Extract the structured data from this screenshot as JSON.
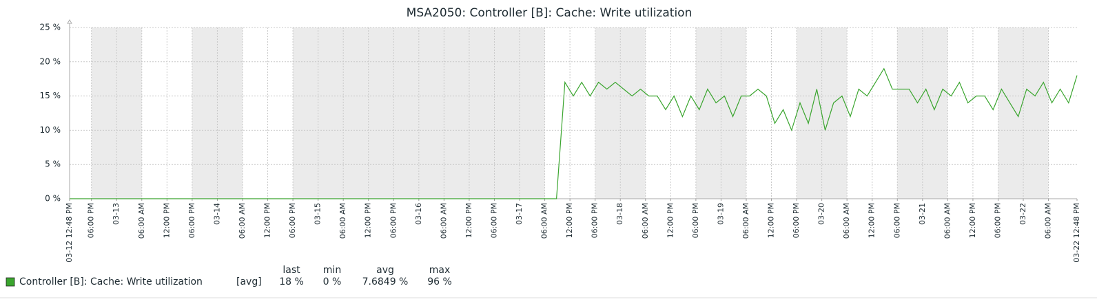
{
  "chart_data": {
    "type": "line",
    "title": "MSA2050: Controller [B]: Cache: Write utilization",
    "ylim": [
      0,
      25
    ],
    "yticks": [
      {
        "value": 0,
        "label": "0 %"
      },
      {
        "value": 5,
        "label": "5 %"
      },
      {
        "value": 10,
        "label": "10 %"
      },
      {
        "value": 15,
        "label": "15 %"
      },
      {
        "value": 20,
        "label": "20 %"
      },
      {
        "value": 25,
        "label": "25 %"
      }
    ],
    "xticks": [
      "03-12 12:48 PM",
      "06:00 PM",
      "03-13",
      "06:00 AM",
      "12:00 PM",
      "06:00 PM",
      "03-14",
      "06:00 AM",
      "12:00 PM",
      "06:00 PM",
      "03-15",
      "06:00 AM",
      "12:00 PM",
      "06:00 PM",
      "03-16",
      "06:00 AM",
      "12:00 PM",
      "06:00 PM",
      "03-17",
      "06:00 AM",
      "12:00 PM",
      "06:00 PM",
      "03-18",
      "06:00 AM",
      "12:00 PM",
      "06:00 PM",
      "03-19",
      "06:00 AM",
      "12:00 PM",
      "06:00 PM",
      "03-20",
      "06:00 AM",
      "12:00 PM",
      "06:00 PM",
      "03-21",
      "06:00 AM",
      "12:00 PM",
      "06:00 PM",
      "03-22",
      "06:00 AM",
      "03-22 12:48 PM"
    ],
    "xtick_colors": [
      "#e53935",
      "#1f2c33",
      "#e53935",
      "#1f2c33",
      "#1f2c33",
      "#1f2c33",
      "#e53935",
      "#1f2c33",
      "#1f2c33",
      "#1f2c33",
      "#e53935",
      "#1f2c33",
      "#1f2c33",
      "#1f2c33",
      "#e53935",
      "#1f2c33",
      "#1f2c33",
      "#1f2c33",
      "#e53935",
      "#1f2c33",
      "#1f2c33",
      "#1f2c33",
      "#e53935",
      "#1f2c33",
      "#1f2c33",
      "#1f2c33",
      "#e53935",
      "#1f2c33",
      "#1f2c33",
      "#1f2c33",
      "#e53935",
      "#1f2c33",
      "#1f2c33",
      "#1f2c33",
      "#e53935",
      "#1f2c33",
      "#1f2c33",
      "#1f2c33",
      "#e53935",
      "#1f2c33",
      "#e53935"
    ],
    "grid": true,
    "series": [
      {
        "name": "Controller [B]: Cache: Write utilization",
        "color": "#3aa52e",
        "values": [
          0,
          0,
          0,
          0,
          0,
          0,
          0,
          0,
          0,
          0,
          0,
          0,
          0,
          0,
          0,
          0,
          0,
          0,
          0,
          0,
          0,
          0,
          0,
          0,
          0,
          0,
          0,
          0,
          0,
          0,
          0,
          0,
          0,
          0,
          0,
          0,
          0,
          0,
          0,
          0,
          0,
          0,
          0,
          0,
          0,
          0,
          0,
          0,
          0,
          0,
          0,
          0,
          0,
          0,
          0,
          0,
          0,
          0,
          0,
          17,
          15,
          17,
          15,
          17,
          16,
          17,
          16,
          15,
          16,
          15,
          15,
          13,
          15,
          12,
          15,
          13,
          16,
          14,
          15,
          12,
          15,
          15,
          16,
          15,
          11,
          13,
          10,
          14,
          11,
          16,
          10,
          14,
          15,
          12,
          16,
          15,
          17,
          19,
          16,
          16,
          16,
          14,
          16,
          13,
          16,
          15,
          17,
          14,
          15,
          15,
          13,
          16,
          14,
          12,
          16,
          15,
          17,
          14,
          16,
          14,
          18
        ]
      }
    ],
    "legend": {
      "function": "[avg]",
      "headers": [
        "last",
        "min",
        "avg",
        "max"
      ],
      "stats": [
        "18 %",
        "0 %",
        "7.6849 %",
        "96 %"
      ]
    }
  }
}
